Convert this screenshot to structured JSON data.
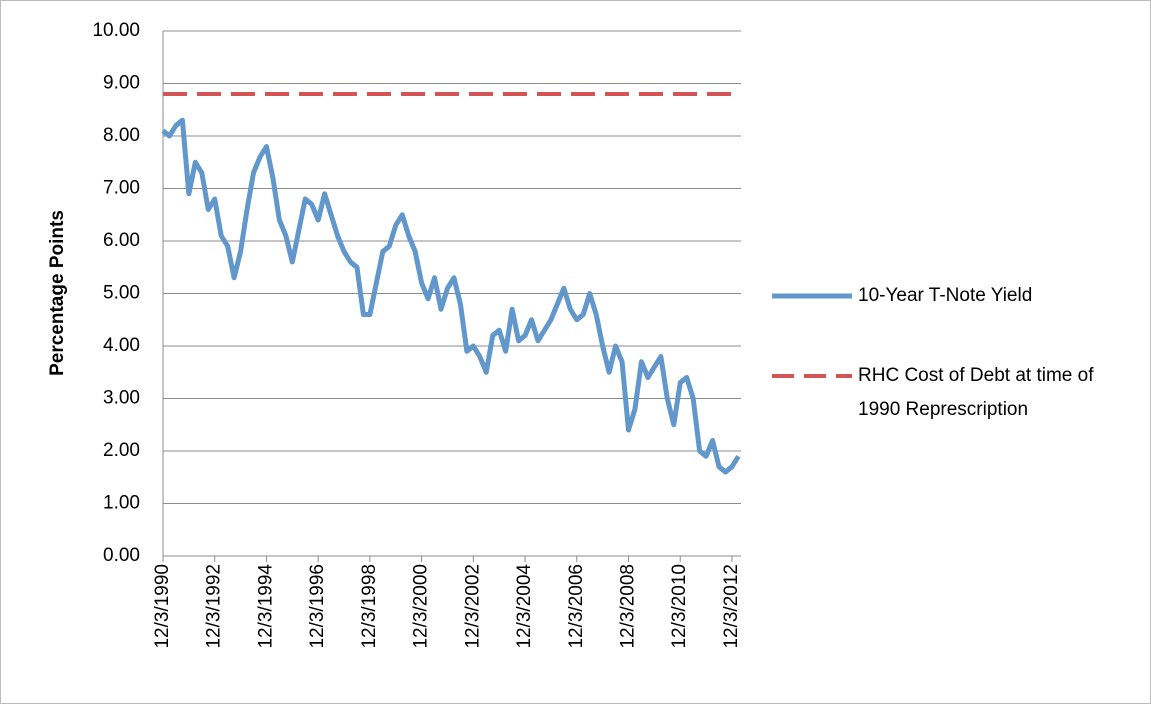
{
  "chart_data": {
    "type": "line",
    "ylabel": "Percentage Points",
    "categories": [
      "12/3/1990",
      null,
      null,
      null,
      null,
      null,
      null,
      null,
      "12/3/1992",
      null,
      null,
      null,
      null,
      null,
      null,
      null,
      "12/3/1994",
      null,
      null,
      null,
      null,
      null,
      null,
      null,
      "12/3/1996",
      null,
      null,
      null,
      null,
      null,
      null,
      null,
      "12/3/1998",
      null,
      null,
      null,
      null,
      null,
      null,
      null,
      "12/3/2000",
      null,
      null,
      null,
      null,
      null,
      null,
      null,
      "12/3/2002",
      null,
      null,
      null,
      null,
      null,
      null,
      null,
      "12/3/2004",
      null,
      null,
      null,
      null,
      null,
      null,
      null,
      "12/3/2006",
      null,
      null,
      null,
      null,
      null,
      null,
      null,
      "12/3/2008",
      null,
      null,
      null,
      null,
      null,
      null,
      null,
      "12/3/2010",
      null,
      null,
      null,
      null,
      null,
      null,
      null,
      "12/3/2012",
      null
    ],
    "series": [
      {
        "name": "10-Year T-Note Yield",
        "color": "#6197cb",
        "style": "solid",
        "values": [
          8.1,
          8.0,
          8.2,
          8.3,
          6.9,
          7.5,
          7.3,
          6.6,
          6.8,
          6.1,
          5.9,
          5.3,
          5.8,
          6.6,
          7.3,
          7.6,
          7.8,
          7.2,
          6.4,
          6.1,
          5.6,
          6.2,
          6.8,
          6.7,
          6.4,
          6.9,
          6.5,
          6.1,
          5.8,
          5.6,
          5.5,
          4.6,
          4.6,
          5.2,
          5.8,
          5.9,
          6.3,
          6.5,
          6.1,
          5.8,
          5.2,
          4.9,
          5.3,
          4.7,
          5.1,
          5.3,
          4.8,
          3.9,
          4.0,
          3.8,
          3.5,
          4.2,
          4.3,
          3.9,
          4.7,
          4.1,
          4.2,
          4.5,
          4.1,
          4.3,
          4.5,
          4.8,
          5.1,
          4.7,
          4.5,
          4.6,
          5.0,
          4.6,
          4.0,
          3.5,
          4.0,
          3.7,
          2.4,
          2.8,
          3.7,
          3.4,
          3.6,
          3.8,
          3.0,
          2.5,
          3.3,
          3.4,
          3.0,
          2.0,
          1.9,
          2.2,
          1.7,
          1.6,
          1.7,
          1.9
        ]
      },
      {
        "name": "RHC Cost of Debt at time of 1990 Represcription",
        "color": "#d35452",
        "style": "dashed",
        "values": [
          8.8,
          8.8,
          8.8,
          8.8,
          8.8,
          8.8,
          8.8,
          8.8,
          8.8,
          8.8,
          8.8,
          8.8,
          8.8,
          8.8,
          8.8,
          8.8,
          8.8,
          8.8,
          8.8,
          8.8,
          8.8,
          8.8,
          8.8,
          8.8,
          8.8,
          8.8,
          8.8,
          8.8,
          8.8,
          8.8,
          8.8,
          8.8,
          8.8,
          8.8,
          8.8,
          8.8,
          8.8,
          8.8,
          8.8,
          8.8,
          8.8,
          8.8,
          8.8,
          8.8,
          8.8,
          8.8,
          8.8,
          8.8,
          8.8,
          8.8,
          8.8,
          8.8,
          8.8,
          8.8,
          8.8,
          8.8,
          8.8,
          8.8,
          8.8,
          8.8,
          8.8,
          8.8,
          8.8,
          8.8,
          8.8,
          8.8,
          8.8,
          8.8,
          8.8,
          8.8,
          8.8,
          8.8,
          8.8,
          8.8,
          8.8,
          8.8,
          8.8,
          8.8,
          8.8,
          8.8,
          8.8,
          8.8,
          8.8,
          8.8,
          8.8,
          8.8,
          8.8,
          8.8,
          8.8,
          8.8
        ]
      }
    ],
    "ylim": [
      0,
      10
    ],
    "yticks": [
      {
        "value": 0,
        "label": "0.00"
      },
      {
        "value": 1,
        "label": "1.00"
      },
      {
        "value": 2,
        "label": "2.00"
      },
      {
        "value": 3,
        "label": "3.00"
      },
      {
        "value": 4,
        "label": "4.00"
      },
      {
        "value": 5,
        "label": "5.00"
      },
      {
        "value": 6,
        "label": "6.00"
      },
      {
        "value": 7,
        "label": "7.00"
      },
      {
        "value": 8,
        "label": "8.00"
      },
      {
        "value": 9,
        "label": "9.00"
      },
      {
        "value": 10,
        "label": "10.00"
      }
    ],
    "grid": true,
    "legend": "right"
  }
}
